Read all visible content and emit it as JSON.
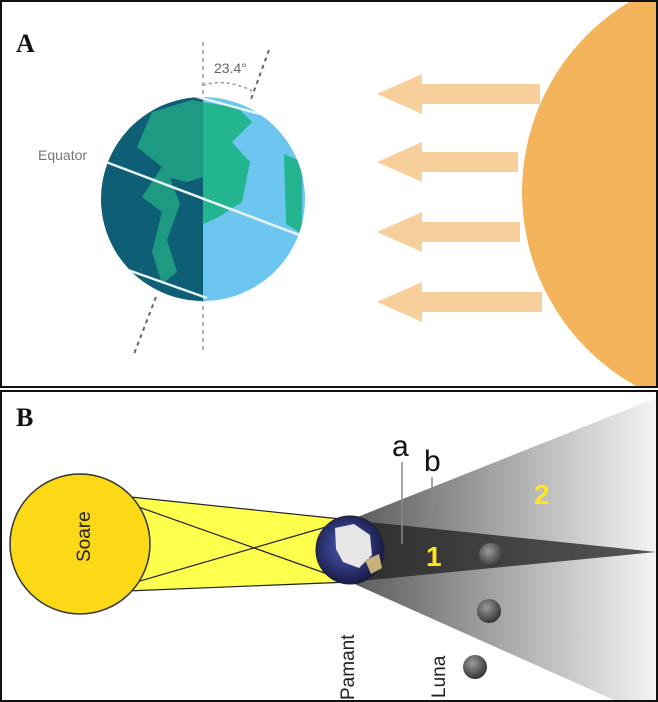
{
  "panel_a": {
    "letter": "A",
    "tilt_label": "23.4°",
    "equator_label": "Equator",
    "colors": {
      "ocean_dark": "#0e5f75",
      "land_dark": "#1f9a82",
      "ocean_light": "#6dc6ef",
      "land_light": "#23b58f",
      "sun": "#f3b45c",
      "arrow": "#f7cf9b"
    }
  },
  "panel_b": {
    "letter": "B",
    "sun_label": "Soare",
    "earth_label": "Pamant",
    "moon_label": "Luna",
    "label_a": "a",
    "label_b": "b",
    "label_1": "1",
    "label_2": "2",
    "colors": {
      "sun": "#fbd916",
      "beam": "#ffff4d",
      "umbra": "#3c3c3c",
      "penumbra": "#d0d0d0",
      "zone_label": "#ffe51a"
    }
  }
}
